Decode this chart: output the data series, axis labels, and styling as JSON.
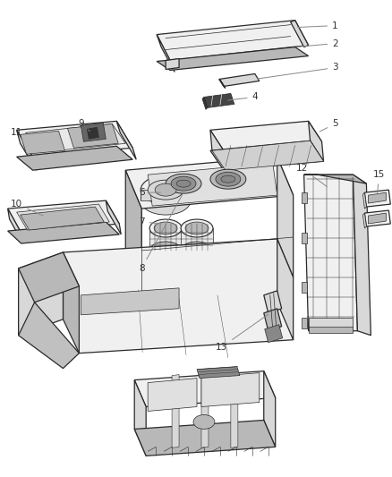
{
  "background_color": "#ffffff",
  "fig_width": 4.38,
  "fig_height": 5.33,
  "dpi": 100,
  "line_color": "#2a2a2a",
  "light_fill": "#f0f0f0",
  "mid_fill": "#d8d8d8",
  "dark_fill": "#b8b8b8",
  "darker_fill": "#909090",
  "label_color": "#333333",
  "leader_color": "#888888",
  "label_fontsize": 7.5,
  "lw_main": 0.9,
  "lw_thin": 0.5
}
